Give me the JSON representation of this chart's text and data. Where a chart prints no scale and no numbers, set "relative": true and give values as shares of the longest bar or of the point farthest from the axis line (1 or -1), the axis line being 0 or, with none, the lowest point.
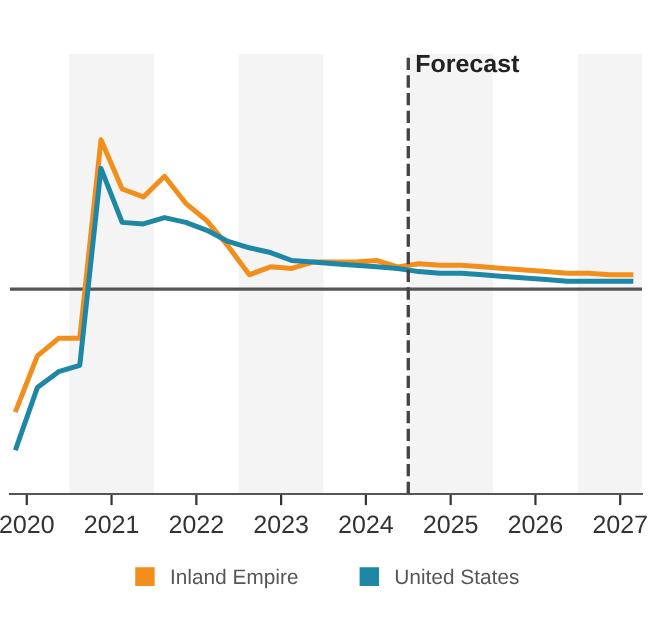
{
  "chart_data": {
    "type": "line",
    "relative": true,
    "x": [
      2020.375,
      2020.625,
      2020.875,
      2021.125,
      2021.375,
      2021.625,
      2021.875,
      2022.125,
      2022.375,
      2022.625,
      2022.875,
      2023.125,
      2023.375,
      2023.625,
      2023.875,
      2024.125,
      2024.375,
      2024.625,
      2024.875,
      2025.125,
      2025.375,
      2025.625,
      2025.875,
      2026.125,
      2026.375,
      2026.625,
      2026.875,
      2027.125,
      2027.375,
      2027.625
    ],
    "series": [
      {
        "name": "Inland Empire",
        "color": "#f28e1c",
        "values": [
          -0.76,
          -0.42,
          -0.31,
          -0.31,
          0.94,
          0.63,
          0.58,
          0.71,
          0.54,
          0.43,
          0.27,
          0.09,
          0.14,
          0.13,
          0.17,
          0.17,
          0.17,
          0.18,
          0.14,
          0.16,
          0.15,
          0.15,
          0.14,
          0.13,
          0.12,
          0.11,
          0.1,
          0.1,
          0.09,
          0.09
        ]
      },
      {
        "name": "United States",
        "color": "#1f87a6",
        "values": [
          -1,
          -0.62,
          -0.52,
          -0.48,
          0.76,
          0.42,
          0.41,
          0.45,
          0.42,
          0.37,
          0.3,
          0.26,
          0.23,
          0.18,
          0.17,
          0.16,
          0.15,
          0.14,
          0.13,
          0.11,
          0.1,
          0.1,
          0.09,
          0.08,
          0.07,
          0.06,
          0.05,
          0.05,
          0.05,
          0.05
        ]
      }
    ],
    "xlim": [
      2020.302,
      2027.757
    ],
    "xticks": [
      {
        "value": 2020.5,
        "label": "2020"
      },
      {
        "value": 2021.5,
        "label": "2021"
      },
      {
        "value": 2022.5,
        "label": "2022"
      },
      {
        "value": 2023.5,
        "label": "2023"
      },
      {
        "value": 2024.5,
        "label": "2024"
      },
      {
        "value": 2025.5,
        "label": "2025"
      },
      {
        "value": 2026.5,
        "label": "2026"
      },
      {
        "value": 2027.5,
        "label": "2027"
      }
    ],
    "ref_lines": [
      {
        "axis": "x",
        "value": 2025,
        "label": "Forecast",
        "color": "#444444",
        "line_style": "dashed"
      }
    ],
    "bands": [
      {
        "axis": "x",
        "from": 2021,
        "to": 2022,
        "color": "#f4f4f4"
      },
      {
        "axis": "x",
        "from": 2023,
        "to": 2024,
        "color": "#f4f4f4"
      },
      {
        "axis": "x",
        "from": 2025,
        "to": 2026,
        "color": "#f4f4f4"
      },
      {
        "axis": "x",
        "from": 2027,
        "to": 2027.757,
        "color": "#f4f4f4"
      }
    ],
    "legend": "bottom",
    "marker": "none",
    "line_style": "solid"
  }
}
